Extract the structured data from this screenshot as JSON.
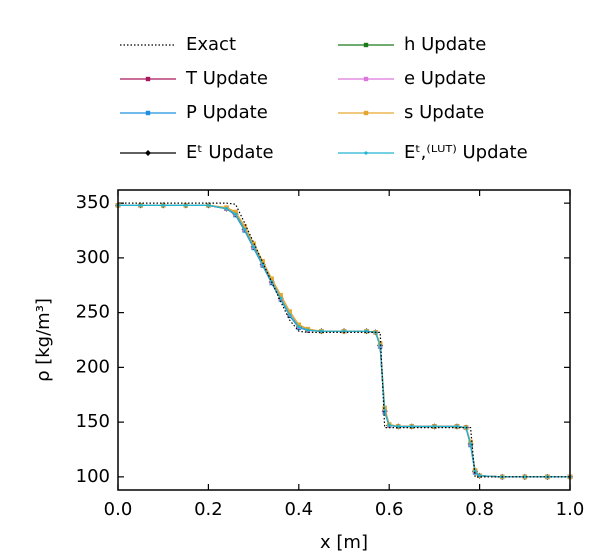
{
  "chart_data": {
    "type": "line",
    "xlabel": "x [m]",
    "ylabel": "ρ [kg/m³]",
    "xlim": [
      0,
      1
    ],
    "ylim": [
      88,
      362
    ],
    "xticks": [
      {
        "value": 0,
        "label": "0.0"
      },
      0.2,
      0.4,
      0.6,
      0.8,
      {
        "value": 1,
        "label": "1.0"
      }
    ],
    "yticks": [
      100,
      150,
      200,
      250,
      300,
      350
    ],
    "x": [
      0,
      0.05,
      0.1,
      0.15,
      0.2,
      0.24,
      0.26,
      0.28,
      0.3,
      0.32,
      0.34,
      0.36,
      0.38,
      0.4,
      0.42,
      0.45,
      0.5,
      0.55,
      0.57,
      0.58,
      0.59,
      0.6,
      0.62,
      0.65,
      0.7,
      0.75,
      0.77,
      0.78,
      0.79,
      0.8,
      0.85,
      0.9,
      0.95,
      1.0
    ],
    "series": [
      {
        "name": "Exact",
        "color": "#000000",
        "marker": "none",
        "dash": "dotted",
        "values": [
          350,
          350,
          350,
          350,
          350,
          350,
          349,
          332,
          314,
          296,
          278,
          260,
          243,
          233,
          232,
          232,
          232,
          232,
          232,
          232,
          145,
          145,
          145,
          145,
          145,
          145,
          145,
          145,
          100,
          100,
          100,
          100,
          100,
          100
        ]
      },
      {
        "name": "T Update",
        "color": "#a8175c",
        "marker": "square",
        "values": [
          348,
          348,
          348,
          348,
          348,
          345,
          340,
          326,
          310,
          294,
          278,
          263,
          248,
          237,
          234,
          233,
          233,
          233,
          232,
          220,
          160,
          147,
          146,
          146,
          146,
          146,
          145,
          130,
          105,
          101,
          100,
          100,
          100,
          100
        ]
      },
      {
        "name": "P Update",
        "color": "#1f8fe0",
        "marker": "square",
        "values": [
          348,
          348,
          348,
          348,
          348,
          345,
          339,
          325,
          309,
          293,
          277,
          262,
          247,
          236,
          234,
          233,
          233,
          233,
          232,
          219,
          159,
          147,
          146,
          146,
          146,
          146,
          145,
          129,
          104,
          101,
          100,
          100,
          100,
          100
        ]
      },
      {
        "name": "Eᵗ Update",
        "color": "#000000",
        "marker": "diamond",
        "values": [
          348,
          348,
          348,
          348,
          348,
          345,
          340,
          326,
          310,
          294,
          278,
          263,
          248,
          237,
          234,
          233,
          233,
          233,
          232,
          220,
          160,
          147,
          146,
          146,
          146,
          146,
          145,
          130,
          105,
          101,
          100,
          100,
          100,
          100
        ]
      },
      {
        "name": "h Update",
        "color": "#1a7a1a",
        "marker": "square",
        "values": [
          348,
          348,
          348,
          348,
          348,
          345,
          340,
          326,
          310,
          294,
          278,
          263,
          248,
          237,
          234,
          233,
          233,
          233,
          232,
          220,
          160,
          147,
          146,
          146,
          146,
          146,
          145,
          130,
          105,
          101,
          100,
          100,
          100,
          100
        ]
      },
      {
        "name": "e Update",
        "color": "#dd77dd",
        "marker": "square",
        "values": [
          348,
          348,
          348,
          348,
          348,
          345,
          340,
          326,
          310,
          294,
          278,
          263,
          248,
          237,
          234,
          233,
          233,
          233,
          232,
          220,
          160,
          147,
          146,
          146,
          146,
          146,
          145,
          130,
          105,
          101,
          100,
          100,
          100,
          100
        ]
      },
      {
        "name": "s Update",
        "color": "#e6a630",
        "marker": "square",
        "values": [
          348,
          348,
          348,
          348,
          348,
          346,
          342,
          329,
          313,
          297,
          281,
          266,
          251,
          239,
          235,
          233,
          233,
          233,
          232,
          222,
          163,
          148,
          146,
          146,
          146,
          146,
          145,
          132,
          106,
          101,
          100,
          100,
          100,
          100
        ]
      },
      {
        "name": "Eᵗ,⁽ᴸᵁᵀ⁾ Update",
        "color": "#22b5d0",
        "marker": "dot",
        "values": [
          348,
          348,
          348,
          348,
          348,
          345,
          340,
          326,
          310,
          294,
          278,
          263,
          248,
          237,
          234,
          233,
          233,
          233,
          232,
          220,
          160,
          147,
          146,
          146,
          146,
          146,
          145,
          130,
          105,
          101,
          100,
          100,
          100,
          100
        ]
      }
    ]
  }
}
